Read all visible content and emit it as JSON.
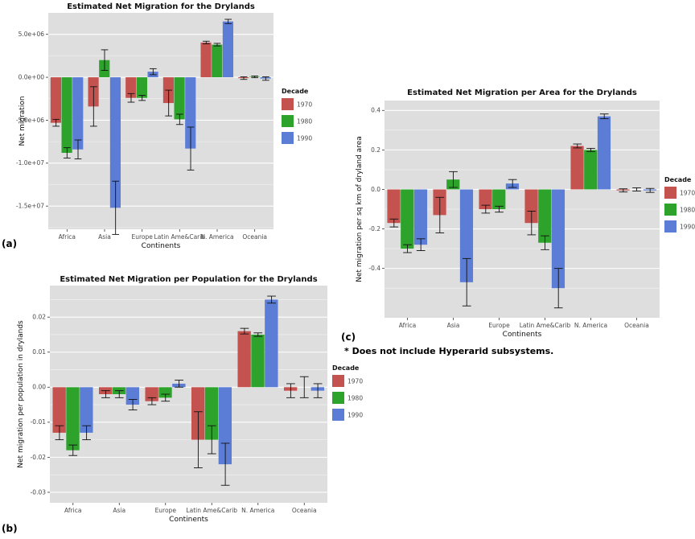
{
  "page": {
    "background": "#ffffff",
    "footnote": "* Does not include Hyperarid subsystems.",
    "panel_labels": {
      "a": "(a)",
      "b": "(b)",
      "c": "(c)"
    }
  },
  "colors": {
    "decade_1970": "#C4524E",
    "decade_1980": "#2EA32C",
    "decade_1990": "#5C7DD6",
    "panel_bg": "#DEDEDE",
    "grid": "#FFFFFF",
    "error_bar": "#111111"
  },
  "chart_data": [
    {
      "id": "a",
      "type": "bar",
      "title": "Estimated Net Migration for the Drylands",
      "xlabel": "Continents",
      "ylabel": "Net migration",
      "categories": [
        "Africa",
        "Asia",
        "Europe",
        "Latin Ame&Carib",
        "N. America",
        "Oceania"
      ],
      "legend": {
        "title": "Decade",
        "entries": [
          "1970",
          "1980",
          "1990"
        ],
        "position": "right"
      },
      "grid": true,
      "ylim": [
        -17700000,
        7500000
      ],
      "yticks": [
        5000000,
        0,
        -5000000,
        -10000000,
        -15000000
      ],
      "ytick_labels": [
        "5.0e+06",
        "0.0e+00",
        "-5.0e+06",
        "-1.0e+07",
        "-1.5e+07"
      ],
      "series": [
        {
          "name": "1970",
          "color": "#C4524E",
          "values": [
            -5300000,
            -3400000,
            -2400000,
            -3000000,
            4050000,
            -100000
          ],
          "errors": [
            400000,
            2300000,
            500000,
            1500000,
            150000,
            150000
          ]
        },
        {
          "name": "1980",
          "color": "#2EA32C",
          "values": [
            -8800000,
            2000000,
            -2400000,
            -4900000,
            3800000,
            50000
          ],
          "errors": [
            600000,
            1200000,
            300000,
            600000,
            150000,
            100000
          ]
        },
        {
          "name": "1990",
          "color": "#5C7DD6",
          "values": [
            -8400000,
            -15200000,
            650000,
            -8300000,
            6500000,
            -150000
          ],
          "errors": [
            1100000,
            3100000,
            350000,
            2500000,
            250000,
            200000
          ]
        }
      ]
    },
    {
      "id": "b",
      "type": "bar",
      "title": "Estimated Net Migration per Population for the Drylands",
      "xlabel": "Continents",
      "ylabel": "Net migration per population in drylands",
      "categories": [
        "Africa",
        "Asia",
        "Europe",
        "Latin Ame&Carib",
        "N. America",
        "Oceania"
      ],
      "legend": {
        "title": "Decade",
        "entries": [
          "1970",
          "1980",
          "1990"
        ],
        "position": "right"
      },
      "grid": true,
      "ylim": [
        -0.033,
        0.029
      ],
      "yticks": [
        0.02,
        0.01,
        0.0,
        -0.01,
        -0.02,
        -0.03
      ],
      "ytick_labels": [
        "0.02",
        "0.01",
        "0.00",
        "-0.01",
        "-0.02",
        "-0.03"
      ],
      "series": [
        {
          "name": "1970",
          "color": "#C4524E",
          "values": [
            -0.013,
            -0.002,
            -0.004,
            -0.015,
            0.016,
            -0.001
          ],
          "errors": [
            0.002,
            0.001,
            0.001,
            0.008,
            0.0008,
            0.002
          ]
        },
        {
          "name": "1980",
          "color": "#2EA32C",
          "values": [
            -0.018,
            -0.002,
            -0.003,
            -0.015,
            0.015,
            0.0
          ],
          "errors": [
            0.0015,
            0.001,
            0.001,
            0.004,
            0.0005,
            0.003
          ]
        },
        {
          "name": "1990",
          "color": "#5C7DD6",
          "values": [
            -0.013,
            -0.005,
            0.001,
            -0.022,
            0.025,
            -0.001
          ],
          "errors": [
            0.002,
            0.0015,
            0.001,
            0.006,
            0.001,
            0.002
          ]
        }
      ]
    },
    {
      "id": "c",
      "type": "bar",
      "title": "Estimated Net Migration per Area for the Drylands",
      "xlabel": "Continents",
      "ylabel": "Net migration per sq km of dryland area",
      "categories": [
        "Africa",
        "Asia",
        "Europe",
        "Latin Ame&Carib",
        "N. America",
        "Oceania"
      ],
      "legend": {
        "title": "Decade",
        "entries": [
          "1970",
          "1980",
          "1990"
        ],
        "position": "right"
      },
      "grid": true,
      "ylim": [
        -0.65,
        0.45
      ],
      "yticks": [
        0.4,
        0.2,
        0.0,
        -0.2,
        -0.4
      ],
      "ytick_labels": [
        "0.4",
        "0.2",
        "0.0",
        "-0.2",
        "-0.4"
      ],
      "series": [
        {
          "name": "1970",
          "color": "#C4524E",
          "values": [
            -0.17,
            -0.13,
            -0.1,
            -0.17,
            0.22,
            -0.005
          ],
          "errors": [
            0.02,
            0.09,
            0.02,
            0.06,
            0.01,
            0.008
          ]
        },
        {
          "name": "1980",
          "color": "#2EA32C",
          "values": [
            -0.3,
            0.05,
            -0.1,
            -0.27,
            0.2,
            0.0
          ],
          "errors": [
            0.02,
            0.04,
            0.015,
            0.035,
            0.008,
            0.008
          ]
        },
        {
          "name": "1990",
          "color": "#5C7DD6",
          "values": [
            -0.28,
            -0.47,
            0.03,
            -0.5,
            0.37,
            -0.005
          ],
          "errors": [
            0.03,
            0.12,
            0.02,
            0.1,
            0.012,
            0.01
          ]
        }
      ]
    }
  ]
}
